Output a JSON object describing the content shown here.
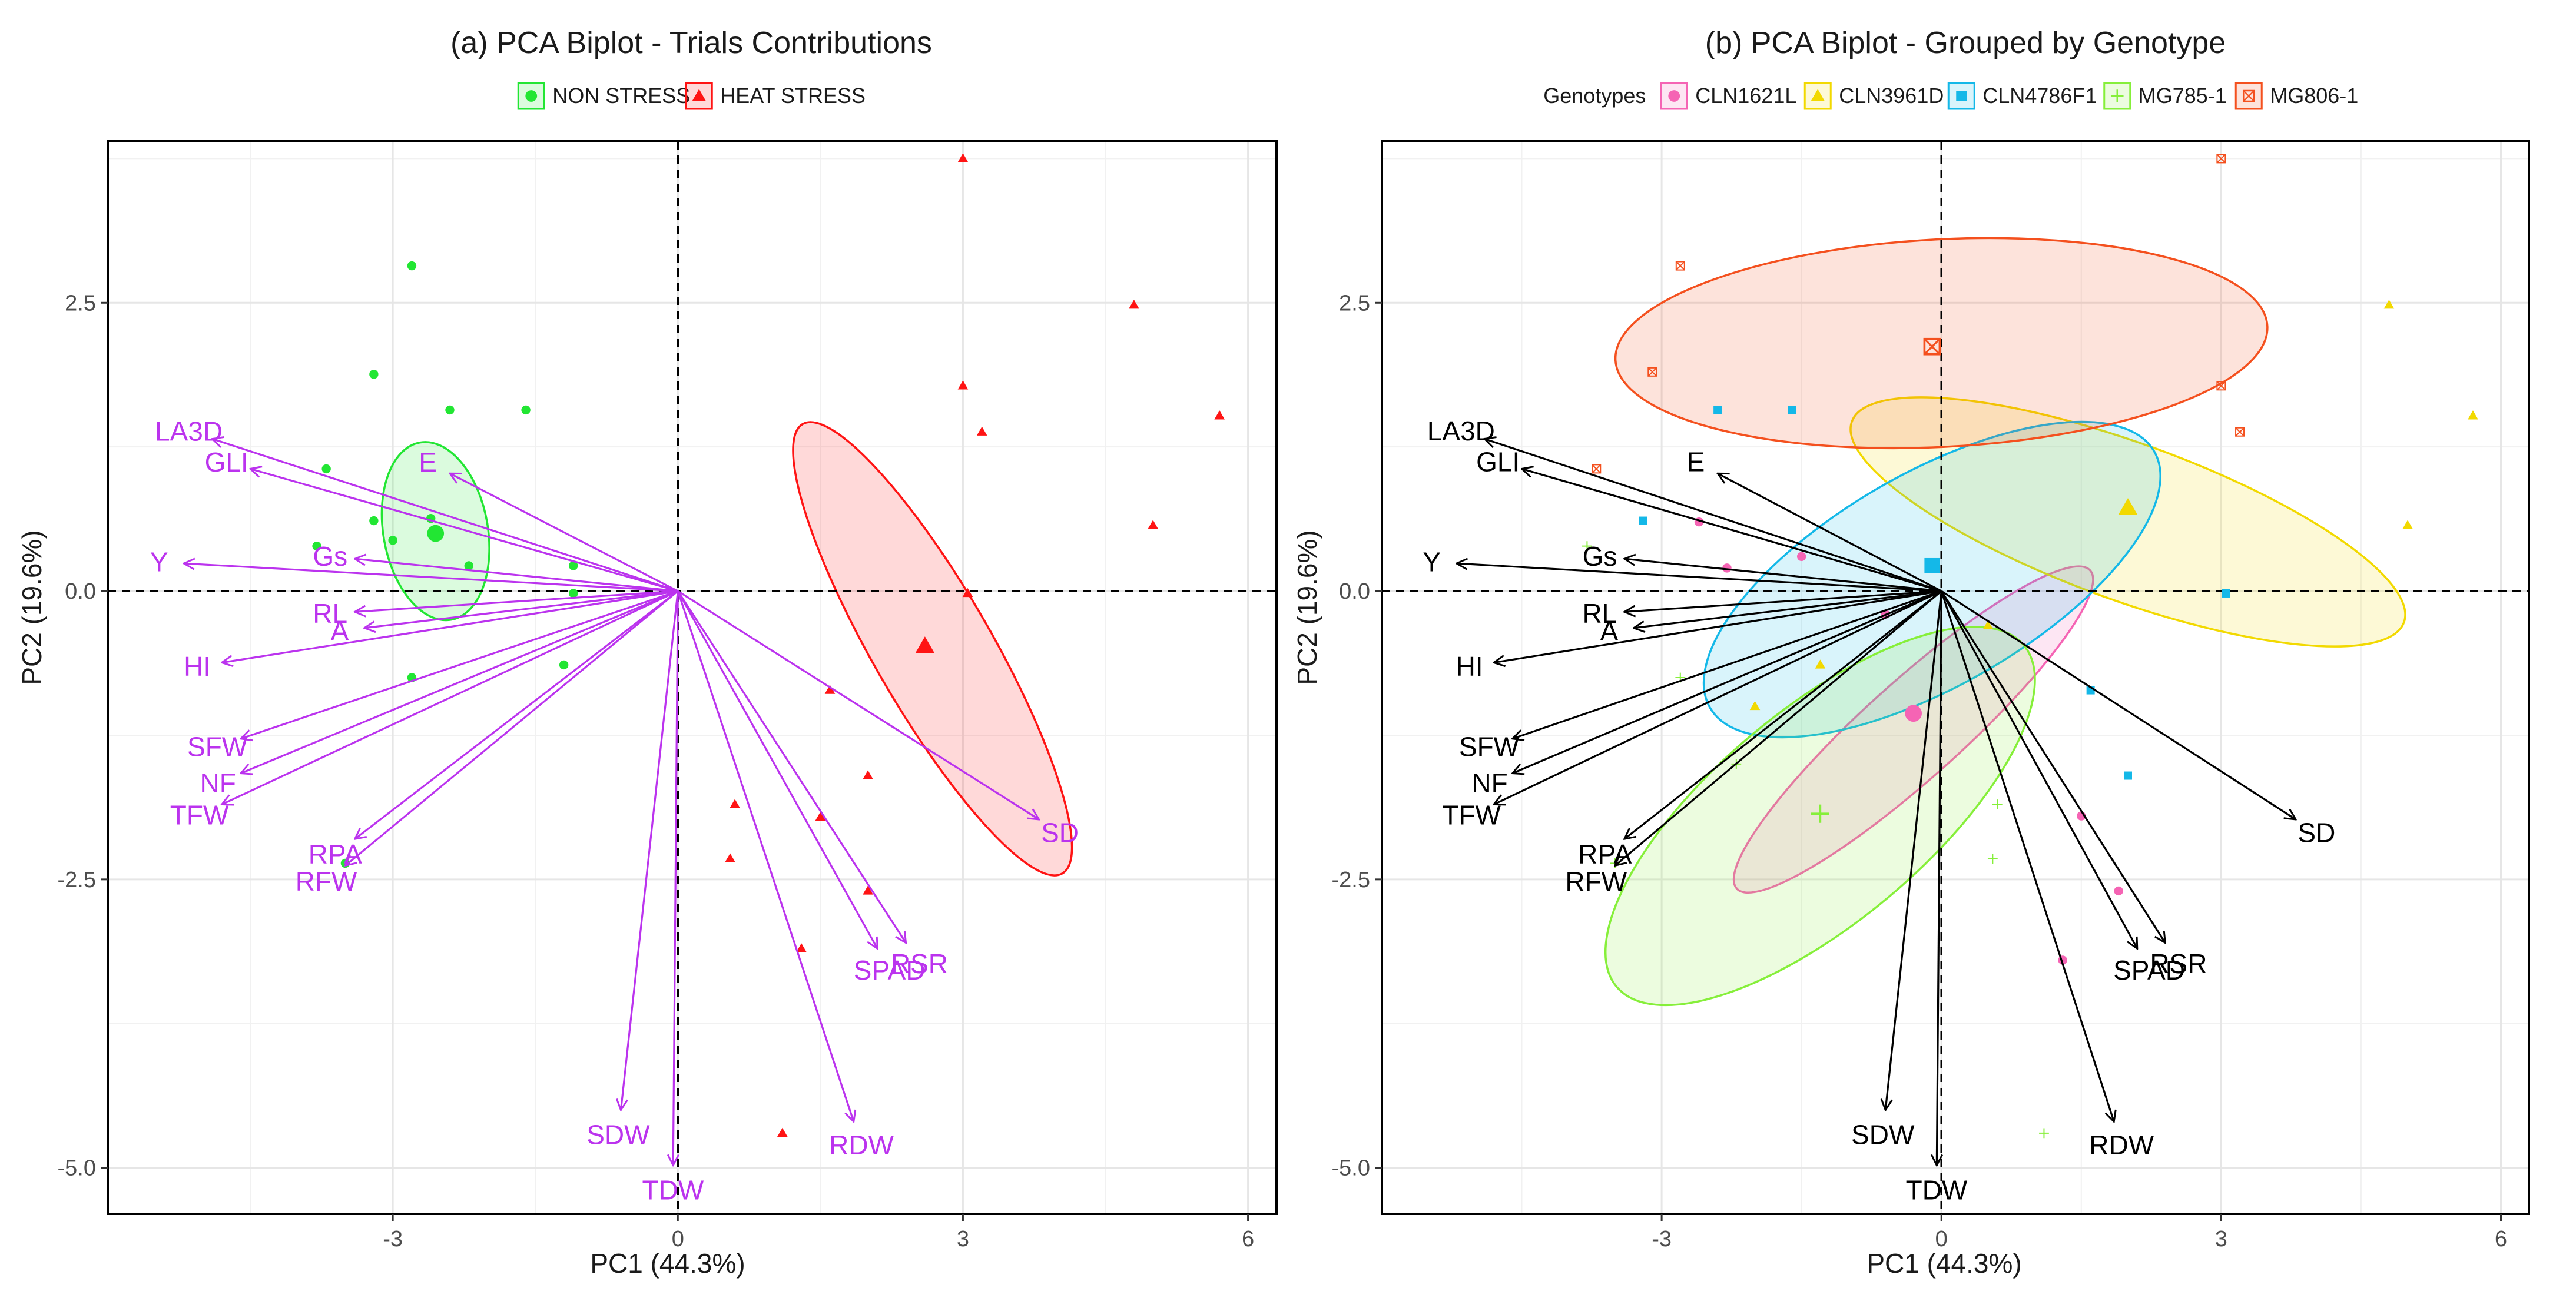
{
  "colors": {
    "non_stress": "#22e633",
    "heat_stress": "#ff1414",
    "vector_a": "#bb33ee",
    "vector_b": "#000000",
    "CLN1621L": "#f564b4",
    "CLN3961D": "#f2d900",
    "CLN4786F1": "#14b8e8",
    "MG785-1": "#86ef3a",
    "MG806-1": "#f4501e"
  },
  "chart_data": [
    {
      "type": "scatter",
      "title": "(a) PCA Biplot - Trials Contributions",
      "xlabel": "PC1 (44.3%)",
      "ylabel": "PC2 (19.6%)",
      "xlim": [
        -6.0,
        6.3
      ],
      "ylim": [
        -5.4,
        3.9
      ],
      "xticks": [
        -3,
        0,
        3,
        6
      ],
      "yticks": [
        -5.0,
        -2.5,
        0.0,
        2.5
      ],
      "grid": true,
      "reference_lines": "dashed lines at x = 0 and y = 0",
      "legend_position": "top",
      "legend_title": "",
      "legend": [
        {
          "label": "NON STRESS",
          "marker": "circle",
          "color_key": "non_stress"
        },
        {
          "label": "HEAT STRESS",
          "marker": "triangle",
          "color_key": "heat_stress"
        }
      ],
      "vector_color_key": "vector_a",
      "series": [
        {
          "name": "NON STRESS",
          "marker": "circle",
          "color_key": "non_stress",
          "centroid": [
            -2.55,
            0.5
          ],
          "ellipse": {
            "center": [
              -2.55,
              0.52
            ],
            "rx": 0.55,
            "ry": 0.78,
            "angle": 10
          },
          "points": [
            [
              -2.8,
              2.82
            ],
            [
              -3.2,
              1.88
            ],
            [
              -2.4,
              1.57
            ],
            [
              -1.6,
              1.57
            ],
            [
              -3.7,
              1.06
            ],
            [
              -3.2,
              0.61
            ],
            [
              -2.6,
              0.63
            ],
            [
              -3.0,
              0.44
            ],
            [
              -3.8,
              0.39
            ],
            [
              -1.1,
              0.22
            ],
            [
              -2.2,
              0.22
            ],
            [
              -1.1,
              -0.02
            ],
            [
              -1.2,
              -0.64
            ],
            [
              -2.8,
              -0.75
            ],
            [
              -3.5,
              -2.36
            ]
          ]
        },
        {
          "name": "HEAT STRESS",
          "marker": "triangle",
          "color_key": "heat_stress",
          "centroid": [
            2.6,
            -0.48
          ],
          "ellipse": {
            "center": [
              2.68,
              -0.5
            ],
            "rx": 0.62,
            "ry": 2.25,
            "angle": 30
          },
          "points": [
            [
              3.0,
              3.75
            ],
            [
              4.8,
              2.48
            ],
            [
              3.0,
              1.78
            ],
            [
              3.2,
              1.38
            ],
            [
              5.7,
              1.52
            ],
            [
              5.0,
              0.57
            ],
            [
              3.05,
              -0.02
            ],
            [
              1.6,
              -0.86
            ],
            [
              2.0,
              -1.6
            ],
            [
              0.6,
              -1.85
            ],
            [
              1.5,
              -1.96
            ],
            [
              0.55,
              -2.32
            ],
            [
              2.0,
              -2.6
            ],
            [
              1.3,
              -3.1
            ],
            [
              1.1,
              -4.7
            ]
          ]
        }
      ],
      "vectors": [
        {
          "name": "LA3D",
          "x": -4.9,
          "y": 1.32
        },
        {
          "name": "GLI",
          "x": -4.5,
          "y": 1.06
        },
        {
          "name": "Y",
          "x": -5.2,
          "y": 0.24
        },
        {
          "name": "HI",
          "x": -4.8,
          "y": -0.62
        },
        {
          "name": "SFW",
          "x": -4.6,
          "y": -1.28
        },
        {
          "name": "NF",
          "x": -4.6,
          "y": -1.58
        },
        {
          "name": "TFW",
          "x": -4.8,
          "y": -1.85
        },
        {
          "name": "RPA",
          "x": -3.4,
          "y": -2.15
        },
        {
          "name": "RFW",
          "x": -3.5,
          "y": -2.38
        },
        {
          "name": "E",
          "x": -2.4,
          "y": 1.02
        },
        {
          "name": "Gs",
          "x": -3.4,
          "y": 0.28
        },
        {
          "name": "RL",
          "x": -3.4,
          "y": -0.18
        },
        {
          "name": "A",
          "x": -3.3,
          "y": -0.32
        },
        {
          "name": "SD",
          "x": 3.8,
          "y": -1.98
        },
        {
          "name": "RSR",
          "x": 2.4,
          "y": -3.05
        },
        {
          "name": "SPAD",
          "x": 2.1,
          "y": -3.1
        },
        {
          "name": "RDW",
          "x": 1.85,
          "y": -4.6
        },
        {
          "name": "SDW",
          "x": -0.6,
          "y": -4.5
        },
        {
          "name": "TDW",
          "x": -0.05,
          "y": -4.98
        }
      ]
    },
    {
      "type": "scatter",
      "title": "(b) PCA Biplot - Grouped by Genotype",
      "xlabel": "PC1 (44.3%)",
      "ylabel": "PC2 (19.6%)",
      "xlim": [
        -6.0,
        6.3
      ],
      "ylim": [
        -5.4,
        3.9
      ],
      "xticks": [
        -3,
        0,
        3,
        6
      ],
      "yticks": [
        -5.0,
        -2.5,
        0.0,
        2.5
      ],
      "grid": true,
      "reference_lines": "dashed lines at x = 0 and y = 0",
      "legend_position": "top",
      "legend_title": "Genotypes",
      "legend": [
        {
          "label": "CLN1621L",
          "marker": "circle",
          "color_key": "CLN1621L"
        },
        {
          "label": "CLN3961D",
          "marker": "triangle",
          "color_key": "CLN3961D"
        },
        {
          "label": "CLN4786F1",
          "marker": "square",
          "color_key": "CLN4786F1"
        },
        {
          "label": "MG785-1",
          "marker": "plus",
          "color_key": "MG785-1"
        },
        {
          "label": "MG806-1",
          "marker": "boxcross",
          "color_key": "MG806-1"
        }
      ],
      "vector_color_key": "vector_b",
      "series": [
        {
          "name": "CLN1621L",
          "marker": "circle",
          "color_key": "CLN1621L",
          "centroid": [
            -0.3,
            -1.06
          ],
          "ellipse": {
            "center": [
              -0.3,
              -1.2
            ],
            "rx": 2.55,
            "ry": 0.42,
            "angle": 42
          },
          "points": [
            [
              -2.6,
              0.6
            ],
            [
              -2.3,
              0.2
            ],
            [
              -1.5,
              0.3
            ],
            [
              -0.6,
              -0.2
            ],
            [
              1.5,
              -1.95
            ],
            [
              1.9,
              -2.6
            ],
            [
              1.3,
              -3.2
            ]
          ]
        },
        {
          "name": "CLN3961D",
          "marker": "triangle",
          "color_key": "CLN3961D",
          "centroid": [
            2.0,
            0.72
          ],
          "ellipse": {
            "center": [
              2.0,
              0.6
            ],
            "rx": 3.15,
            "ry": 0.68,
            "angle": -20
          },
          "points": [
            [
              4.8,
              2.48
            ],
            [
              5.7,
              1.52
            ],
            [
              5.0,
              0.57
            ],
            [
              -1.3,
              -0.64
            ],
            [
              -2.0,
              -1.0
            ],
            [
              0.5,
              -0.3
            ]
          ]
        },
        {
          "name": "CLN4786F1",
          "marker": "square",
          "color_key": "CLN4786F1",
          "centroid": [
            -0.1,
            0.22
          ],
          "ellipse": {
            "center": [
              -0.1,
              0.1
            ],
            "rx": 2.75,
            "ry": 0.92,
            "angle": 30
          },
          "points": [
            [
              -2.4,
              1.57
            ],
            [
              -1.6,
              1.57
            ],
            [
              -3.2,
              0.61
            ],
            [
              3.05,
              -0.02
            ],
            [
              1.6,
              -0.86
            ],
            [
              2.0,
              -1.6
            ]
          ]
        },
        {
          "name": "MG785-1",
          "marker": "plus",
          "color_key": "MG785-1",
          "centroid": [
            -1.3,
            -1.93
          ],
          "ellipse": {
            "center": [
              -1.3,
              -1.95
            ],
            "rx": 2.85,
            "ry": 0.92,
            "angle": 40
          },
          "points": [
            [
              -3.8,
              0.39
            ],
            [
              -2.8,
              -0.75
            ],
            [
              -3.5,
              -2.36
            ],
            [
              0.6,
              -1.85
            ],
            [
              0.55,
              -2.32
            ],
            [
              1.1,
              -4.7
            ],
            [
              -2.2,
              -1.5
            ]
          ]
        },
        {
          "name": "MG806-1",
          "marker": "boxcross",
          "color_key": "MG806-1",
          "centroid": [
            -0.1,
            2.12
          ],
          "ellipse": {
            "center": [
              0.0,
              2.15
            ],
            "rx": 3.5,
            "ry": 0.9,
            "angle": 3
          },
          "points": [
            [
              3.0,
              3.75
            ],
            [
              -2.8,
              2.82
            ],
            [
              3.0,
              1.78
            ],
            [
              3.2,
              1.38
            ],
            [
              -3.1,
              1.9
            ],
            [
              -3.7,
              1.06
            ]
          ]
        }
      ],
      "vectors": [
        {
          "name": "LA3D",
          "x": -4.9,
          "y": 1.32
        },
        {
          "name": "GLI",
          "x": -4.5,
          "y": 1.06
        },
        {
          "name": "Y",
          "x": -5.2,
          "y": 0.24
        },
        {
          "name": "HI",
          "x": -4.8,
          "y": -0.62
        },
        {
          "name": "SFW",
          "x": -4.6,
          "y": -1.28
        },
        {
          "name": "NF",
          "x": -4.6,
          "y": -1.58
        },
        {
          "name": "TFW",
          "x": -4.8,
          "y": -1.85
        },
        {
          "name": "RPA",
          "x": -3.4,
          "y": -2.15
        },
        {
          "name": "RFW",
          "x": -3.5,
          "y": -2.38
        },
        {
          "name": "E",
          "x": -2.4,
          "y": 1.02
        },
        {
          "name": "Gs",
          "x": -3.4,
          "y": 0.28
        },
        {
          "name": "RL",
          "x": -3.4,
          "y": -0.18
        },
        {
          "name": "A",
          "x": -3.3,
          "y": -0.32
        },
        {
          "name": "SD",
          "x": 3.8,
          "y": -1.98
        },
        {
          "name": "RSR",
          "x": 2.4,
          "y": -3.05
        },
        {
          "name": "SPAD",
          "x": 2.1,
          "y": -3.1
        },
        {
          "name": "RDW",
          "x": 1.85,
          "y": -4.6
        },
        {
          "name": "SDW",
          "x": -0.6,
          "y": -4.5
        },
        {
          "name": "TDW",
          "x": -0.05,
          "y": -4.98
        }
      ]
    }
  ]
}
